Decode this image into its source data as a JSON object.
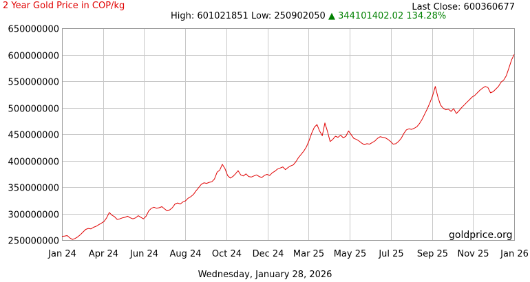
{
  "header": {
    "title": "2 Year Gold Price in COP/kg",
    "last_close_label": "Last Close: 600360677",
    "high_label": "High: 601021851",
    "low_label": "Low: 250902050",
    "change_arrow": "▲",
    "change_label": "344101402.02 134.28%"
  },
  "watermark": "goldprice.org",
  "footer_date": "Wednesday, January 28, 2026",
  "colors": {
    "line": "#e00000",
    "title": "#e00000",
    "up": "#008000",
    "grid": "#c8c8c8"
  },
  "chart_data": {
    "type": "line",
    "title": "2 Year Gold Price in COP/kg",
    "xlabel": "",
    "ylabel": "",
    "ylim": [
      250000000,
      650000000
    ],
    "yticks": [
      650000000,
      600000000,
      550000000,
      500000000,
      450000000,
      400000000,
      350000000,
      300000000,
      250000000
    ],
    "ytick_labels": [
      "650000000",
      "600000000",
      "550000000",
      "500000000",
      "450000000",
      "400000000",
      "350000000",
      "300000000",
      "250000000"
    ],
    "xticks": [
      "Jan 24",
      "Apr 24",
      "Jun 24",
      "Aug 24",
      "Oct 24",
      "Dec 24",
      "Mar 25",
      "May 25",
      "Jul 25",
      "Sep 25",
      "Nov 25",
      "Jan 26"
    ],
    "grid": true,
    "series": [
      {
        "values": [
          257000000,
          257500000,
          258500000,
          254000000,
          251000000,
          253000000,
          256000000,
          260000000,
          265000000,
          270000000,
          272000000,
          271000000,
          274000000,
          276000000,
          279000000,
          282000000,
          285000000,
          292000000,
          302000000,
          297000000,
          294000000,
          289000000,
          290000000,
          292000000,
          293000000,
          295000000,
          292000000,
          290000000,
          292000000,
          296000000,
          293000000,
          290000000,
          295000000,
          305000000,
          310000000,
          312000000,
          310000000,
          311000000,
          313000000,
          309000000,
          305000000,
          307000000,
          311000000,
          318000000,
          320000000,
          318000000,
          322000000,
          324000000,
          329000000,
          332000000,
          336000000,
          343000000,
          349000000,
          355000000,
          358000000,
          357000000,
          359000000,
          360000000,
          365000000,
          378000000,
          382000000,
          393000000,
          385000000,
          372000000,
          367000000,
          370000000,
          375000000,
          381000000,
          373000000,
          371000000,
          375000000,
          370000000,
          369000000,
          371000000,
          373000000,
          370000000,
          368000000,
          372000000,
          374000000,
          372000000,
          377000000,
          380000000,
          384000000,
          386000000,
          388000000,
          383000000,
          387000000,
          390000000,
          392000000,
          398000000,
          406000000,
          412000000,
          418000000,
          426000000,
          438000000,
          452000000,
          463000000,
          468000000,
          456000000,
          447000000,
          471000000,
          455000000,
          436000000,
          440000000,
          446000000,
          444000000,
          448000000,
          443000000,
          446000000,
          456000000,
          449000000,
          442000000,
          440000000,
          437000000,
          433000000,
          430000000,
          432000000,
          431000000,
          434000000,
          437000000,
          442000000,
          445000000,
          444000000,
          443000000,
          440000000,
          436000000,
          431000000,
          432000000,
          436000000,
          442000000,
          451000000,
          458000000,
          460000000,
          459000000,
          461000000,
          464000000,
          470000000,
          478000000,
          488000000,
          498000000,
          510000000,
          523000000,
          540000000,
          520000000,
          505000000,
          499000000,
          496000000,
          497000000,
          493000000,
          498000000,
          489000000,
          494000000,
          500000000,
          505000000,
          510000000,
          515000000,
          520000000,
          523000000,
          528000000,
          533000000,
          537000000,
          540000000,
          538000000,
          528000000,
          530000000,
          535000000,
          540000000,
          548000000,
          552000000,
          560000000,
          575000000,
          590000000,
          600360677
        ]
      }
    ]
  }
}
